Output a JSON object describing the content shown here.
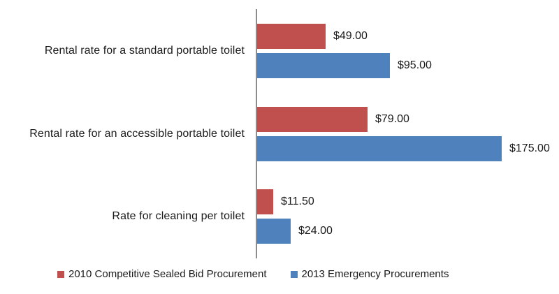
{
  "chart_data": {
    "type": "bar",
    "orientation": "horizontal",
    "title": "",
    "xlabel": "",
    "ylabel": "",
    "grid": false,
    "legend_position": "bottom-left",
    "axis_color": "#8c8c8c",
    "xlim": [
      0,
      216
    ],
    "categories": [
      "Rental rate for a standard portable toilet",
      "Rental rate for an accessible portable toilet",
      "Rate for cleaning per toilet"
    ],
    "series": [
      {
        "name": "2010 Competitive Sealed Bid Procurement",
        "color": "#C0504D",
        "values": [
          49.0,
          79.0,
          11.5
        ],
        "data_labels": [
          "$49.00",
          "$79.00",
          "$11.50"
        ]
      },
      {
        "name": "2013 Emergency Procurements",
        "color": "#4F81BD",
        "values": [
          95.0,
          175.0,
          24.0
        ],
        "data_labels": [
          "$95.00",
          "$175.00",
          "$24.00"
        ]
      }
    ]
  }
}
